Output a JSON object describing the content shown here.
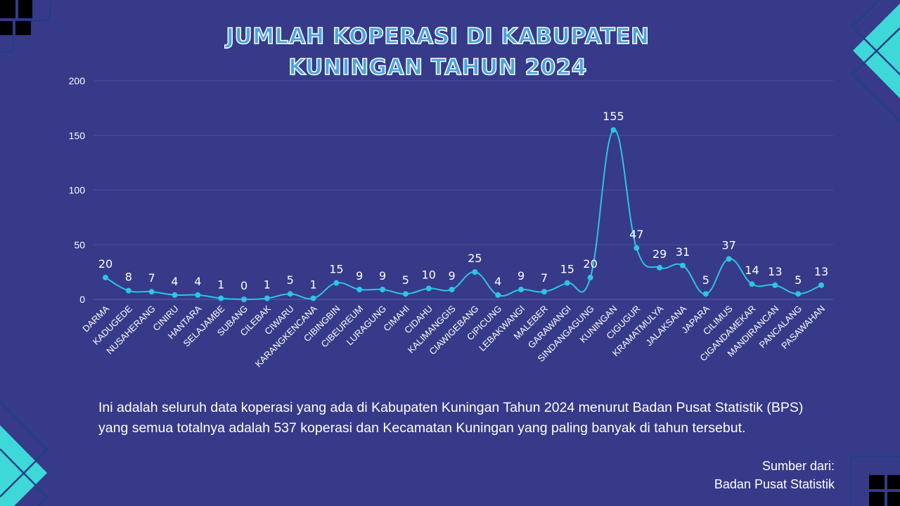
{
  "title_line1": "JUMLAH KOPERASI DI KABUPATEN",
  "title_line2": "KUNINGAN TAHUN 2024",
  "description": "Ini adalah seluruh data koperasi yang ada di Kabupaten Kuningan Tahun 2024 menurut Badan Pusat Statistik (BPS) yang semua totalnya adalah 537 koperasi dan Kecamatan Kuningan yang paling banyak di tahun tersebut.",
  "source_label": "Sumber dari:",
  "source_name": "Badan Pusat Statistik",
  "colors": {
    "background": "#363a88",
    "line": "#2ec4e6",
    "title": "#4aa3e0",
    "accent": "#3fd8d8"
  },
  "chart_data": {
    "type": "line",
    "smooth": true,
    "grid": true,
    "ylim": [
      0,
      200
    ],
    "yticks": [
      0,
      50,
      100,
      150,
      200
    ],
    "categories": [
      "DARMA",
      "KADUGEDE",
      "NUSAHERANG",
      "CINIRU",
      "HANTARA",
      "SELAJAMBE",
      "SUBANG",
      "CILEBAK",
      "CIWARU",
      "KARANGKENCANA",
      "CIBINGBIN",
      "CIBEUREUM",
      "LURAGUNG",
      "CIMAHI",
      "CIDAHU",
      "KALIMANGGIS",
      "CIAWIGEBANG",
      "CIPICUNG",
      "LEBAKWANGI",
      "MALEBER",
      "GARAWANGI",
      "SINDANGAGUNG",
      "KUNINGAN",
      "CIGUGUR",
      "KRAMATMULYA",
      "JALAKSANA",
      "JAPARA",
      "CILIMUS",
      "CIGANDAMEKAR",
      "MANDIRANCAN",
      "PANCALANG",
      "PASAWAHAN"
    ],
    "values": [
      20,
      8,
      7,
      4,
      4,
      1,
      0,
      1,
      5,
      1,
      15,
      9,
      9,
      5,
      10,
      9,
      25,
      4,
      9,
      7,
      15,
      20,
      155,
      47,
      29,
      31,
      5,
      37,
      14,
      13,
      5,
      13
    ]
  }
}
